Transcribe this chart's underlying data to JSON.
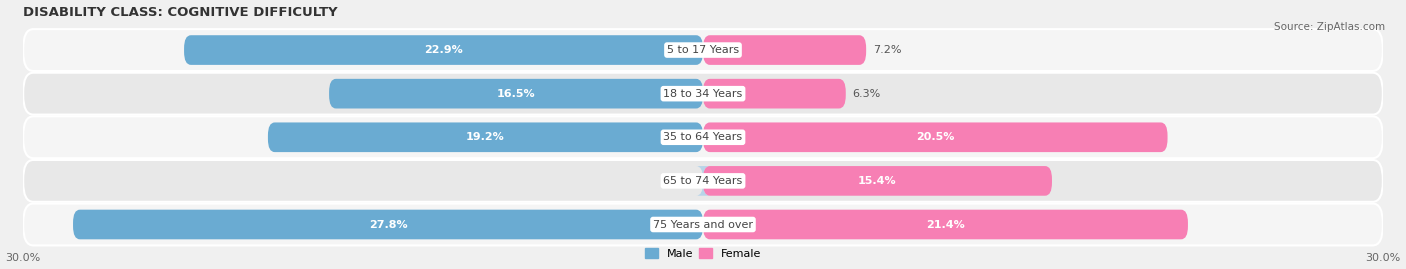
{
  "title": "DISABILITY CLASS: COGNITIVE DIFFICULTY",
  "source": "Source: ZipAtlas.com",
  "categories": [
    "5 to 17 Years",
    "18 to 34 Years",
    "35 to 64 Years",
    "65 to 74 Years",
    "75 Years and over"
  ],
  "male_values": [
    22.9,
    16.5,
    19.2,
    0.0,
    27.8
  ],
  "female_values": [
    7.2,
    6.3,
    20.5,
    15.4,
    21.4
  ],
  "male_color": "#6aabd2",
  "male_color_light": "#b8d4e8",
  "female_color": "#f77fb4",
  "female_color_light": "#f8b4d0",
  "xlim": 30.0,
  "bar_height": 0.68,
  "row_bg_odd": "#f5f5f5",
  "row_bg_even": "#e8e8e8",
  "title_fontsize": 9.5,
  "label_fontsize": 8,
  "axis_fontsize": 8,
  "source_fontsize": 7.5
}
